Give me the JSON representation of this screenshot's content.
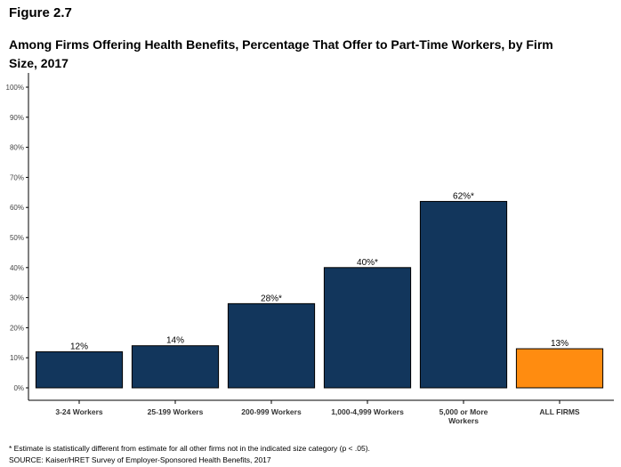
{
  "figure_label": "Figure 2.7",
  "title": "Among Firms Offering Health Benefits, Percentage That Offer to Part-Time Workers, by Firm Size, 2017",
  "footnote": "* Estimate is statistically different from estimate for all other firms not in the indicated size category (p < .05).",
  "source": "SOURCE: Kaiser/HRET Survey of Employer-Sponsored Health Benefits, 2017",
  "colors": {
    "bar": "#12365c",
    "highlight": "#ff8c10"
  },
  "chart_data": {
    "type": "bar",
    "title": "Among Firms Offering Health Benefits, Percentage That Offer to Part-Time Workers, by Firm Size, 2017",
    "xlabel": "",
    "ylabel": "",
    "ylim": [
      0,
      100
    ],
    "yticks": [
      "0%",
      "10%",
      "20%",
      "30%",
      "40%",
      "50%",
      "60%",
      "70%",
      "80%",
      "90%",
      "100%"
    ],
    "grid": false,
    "categories": [
      [
        "3-24 Workers"
      ],
      [
        "25-199 Workers"
      ],
      [
        "200-999 Workers"
      ],
      [
        "1,000-4,999 Workers"
      ],
      [
        "5,000 or More",
        "Workers"
      ],
      [
        "ALL FIRMS"
      ]
    ],
    "values": [
      12,
      14,
      28,
      40,
      62,
      13
    ],
    "data_labels": [
      "12%",
      "14%",
      "28%*",
      "40%*",
      "62%*",
      "13%"
    ],
    "highlight_index": 5
  }
}
